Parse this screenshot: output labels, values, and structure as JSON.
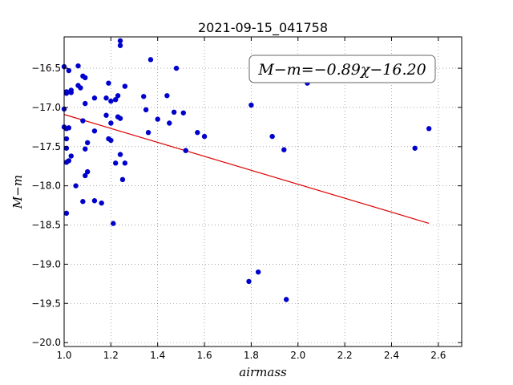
{
  "chart_data": {
    "type": "scatter",
    "title": "2021-09-15_041758",
    "xlabel": "airmass",
    "ylabel": "M−m",
    "xlim": [
      1.0,
      2.7
    ],
    "ylim": [
      -20.05,
      -16.1
    ],
    "y_inverted": true,
    "grid": true,
    "xticks": [
      "1.0",
      "1.2",
      "1.4",
      "1.6",
      "1.8",
      "2.0",
      "2.2",
      "2.4",
      "2.6"
    ],
    "yticks": [
      "−16.5",
      "−17.0",
      "−17.5",
      "−18.0",
      "−18.5",
      "−19.0",
      "−19.5",
      "−20.0"
    ],
    "annotation": "M−m=−0.89χ−16.20",
    "colors": {
      "points": "#0000cc",
      "fit_line": "#dd0000"
    },
    "fit": {
      "slope": -0.89,
      "intercept": -16.2,
      "x_range": [
        1.0,
        2.56
      ]
    },
    "series": [
      {
        "x": [
          1.0,
          1.01,
          1.02,
          1.03,
          1.06,
          1.07,
          1.01,
          1.0,
          1.03,
          1.06,
          1.08,
          1.09,
          1.13,
          1.09,
          1.01,
          1.02,
          1.01,
          1.08,
          1.0,
          1.01,
          1.1,
          1.09,
          1.03,
          1.01,
          1.02,
          1.1,
          1.09,
          1.05,
          1.08,
          1.13,
          1.16,
          1.01,
          1.24,
          1.24,
          1.37,
          1.48,
          1.19,
          1.26,
          1.23,
          1.34,
          1.18,
          1.22,
          1.2,
          1.44,
          1.35,
          1.4,
          1.47,
          1.51,
          1.24,
          1.18,
          1.2,
          1.23,
          1.45,
          1.13,
          1.36,
          1.19,
          1.2,
          1.24,
          1.22,
          1.26,
          1.25,
          1.21,
          1.52,
          1.57,
          1.6,
          1.8,
          1.89,
          1.94,
          2.04,
          2.5,
          2.56,
          1.83,
          1.79,
          1.95
        ],
        "y": [
          -16.48,
          -16.8,
          -16.53,
          -16.78,
          -16.47,
          -16.75,
          -16.82,
          -17.02,
          -16.81,
          -16.72,
          -16.6,
          -16.62,
          -16.88,
          -16.95,
          -17.27,
          -17.26,
          -17.4,
          -17.17,
          -17.25,
          -17.52,
          -17.45,
          -17.53,
          -17.62,
          -17.7,
          -17.68,
          -17.82,
          -17.87,
          -18.0,
          -18.2,
          -18.19,
          -18.22,
          -18.35,
          -16.15,
          -16.21,
          -16.39,
          -16.5,
          -16.69,
          -16.73,
          -16.85,
          -16.86,
          -16.88,
          -16.9,
          -16.92,
          -16.85,
          -17.03,
          -17.15,
          -17.06,
          -17.07,
          -17.14,
          -17.1,
          -17.2,
          -17.12,
          -17.2,
          -17.3,
          -17.32,
          -17.4,
          -17.42,
          -17.6,
          -17.71,
          -17.71,
          -17.92,
          -18.48,
          -17.55,
          -17.32,
          -17.37,
          -16.97,
          -17.37,
          -17.54,
          -16.69,
          -17.52,
          -17.27,
          -19.1,
          -19.22,
          -19.45
        ]
      }
    ]
  }
}
